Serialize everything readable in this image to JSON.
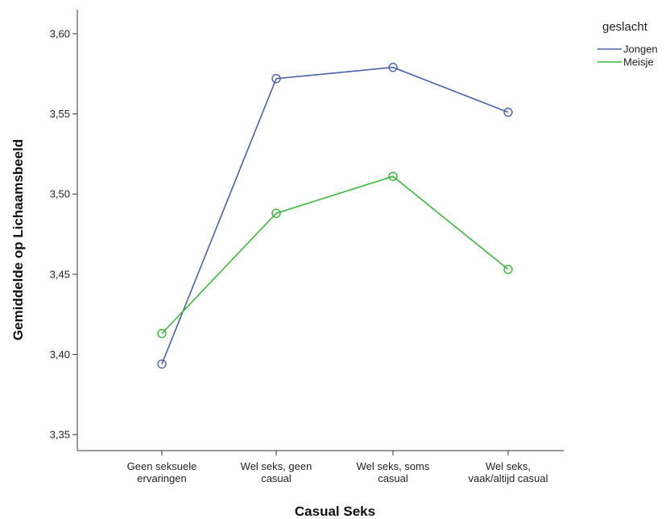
{
  "chart_data": {
    "type": "line",
    "title": "",
    "xlabel": "Casual Seks",
    "ylabel": "Gemiddelde op Lichaamsbeeld",
    "categories": [
      [
        "Geen seksuele",
        "ervaringen"
      ],
      [
        "Wel seks, geen",
        "casual"
      ],
      [
        "Wel seks, soms",
        "casual"
      ],
      [
        "Wel seks,",
        "vaak/altijd casual"
      ]
    ],
    "ylim": [
      3.34,
      3.615
    ],
    "yticks": [
      3.35,
      3.4,
      3.45,
      3.5,
      3.55,
      3.6
    ],
    "ytick_labels": [
      "3,35",
      "3,40",
      "3,45",
      "3,50",
      "3,55",
      "3,60"
    ],
    "grid": false,
    "legend": {
      "title": "geslacht",
      "placement": "top-right"
    },
    "series": [
      {
        "name": "Jongen",
        "color": "#4a62a8",
        "values": [
          3.394,
          3.572,
          3.579,
          3.551
        ]
      },
      {
        "name": "Meisje",
        "color": "#3cb63c",
        "values": [
          3.413,
          3.488,
          3.511,
          3.453
        ]
      }
    ]
  }
}
